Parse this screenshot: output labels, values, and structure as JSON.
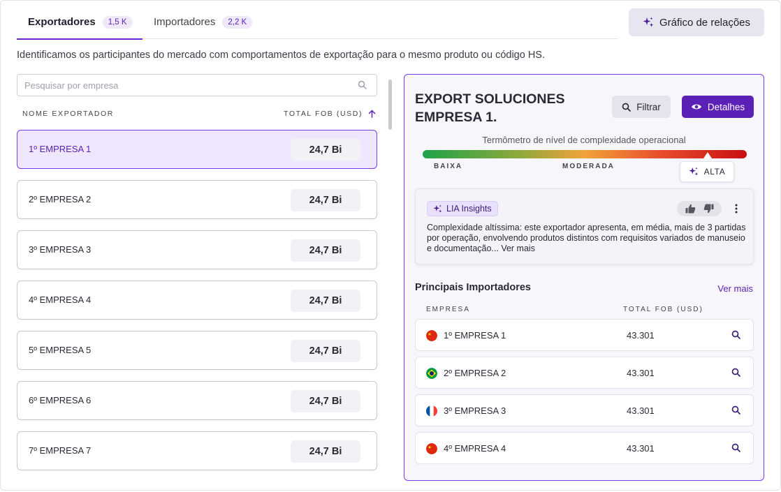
{
  "tabs": [
    {
      "label": "Exportadores",
      "count": "1,5 K",
      "active": true
    },
    {
      "label": "Importadores",
      "count": "2,2 K",
      "active": false
    }
  ],
  "relations_button": "Gráfico de relações",
  "description": "Identificamos os participantes do mercado com comportamentos de exportação para o mesmo produto ou código HS.",
  "search": {
    "placeholder": "Pesquisar por empresa",
    "value": ""
  },
  "list_headers": {
    "name": "NOME EXPORTADOR",
    "fob": "TOTAL FOB (USD)"
  },
  "exporters": [
    {
      "name": "1º EMPRESA 1",
      "value": "24,7 Bi",
      "selected": true
    },
    {
      "name": "2º EMPRESA 2",
      "value": "24,7 Bi"
    },
    {
      "name": "3º EMPRESA 3",
      "value": "24,7 Bi"
    },
    {
      "name": "4º EMPRESA 4",
      "value": "24,7 Bi"
    },
    {
      "name": "5º EMPRESA 5",
      "value": "24,7 Bi"
    },
    {
      "name": "6º EMPRESA 6",
      "value": "24,7 Bi"
    },
    {
      "name": "7º EMPRESA 7",
      "value": "24,7 Bi"
    }
  ],
  "detail": {
    "title": "EXPORT SOLUCIONES EMPRESA 1.",
    "filter_button": "Filtrar",
    "details_button": "Detalhes",
    "thermometer": {
      "title": "Termômetro de nível de complexidade operacional",
      "low": "BAIXA",
      "mid": "MODERADA",
      "high": "ALTA",
      "level": 0.88
    },
    "insight": {
      "badge": "LIA Insights",
      "text": "Complexidade altíssima: este exportador apresenta, em média, mais de 3 partidas por operação, envolvendo produtos distintos com requisitos variados de manuseio e documentação... Ver mais"
    },
    "importers_title": "Principais Importadores",
    "see_more": "Ver mais",
    "importer_headers": {
      "company": "EMPRESA",
      "fob": "TOTAL FOB (USD)"
    },
    "importers": [
      {
        "name": "1º EMPRESA 1",
        "value": "43.301",
        "flag": "china-flag-icon"
      },
      {
        "name": "2º EMPRESA 2",
        "value": "43.301",
        "flag": "brazil-flag-icon"
      },
      {
        "name": "3º EMPRESA 3",
        "value": "43.301",
        "flag": "france-flag-icon"
      },
      {
        "name": "4º EMPRESA 4",
        "value": "43.301",
        "flag": "china-flag-icon"
      }
    ]
  },
  "colors": {
    "accent": "#5b21b6",
    "selected_bg": "#efe7fd",
    "border": "#7c3aed"
  }
}
